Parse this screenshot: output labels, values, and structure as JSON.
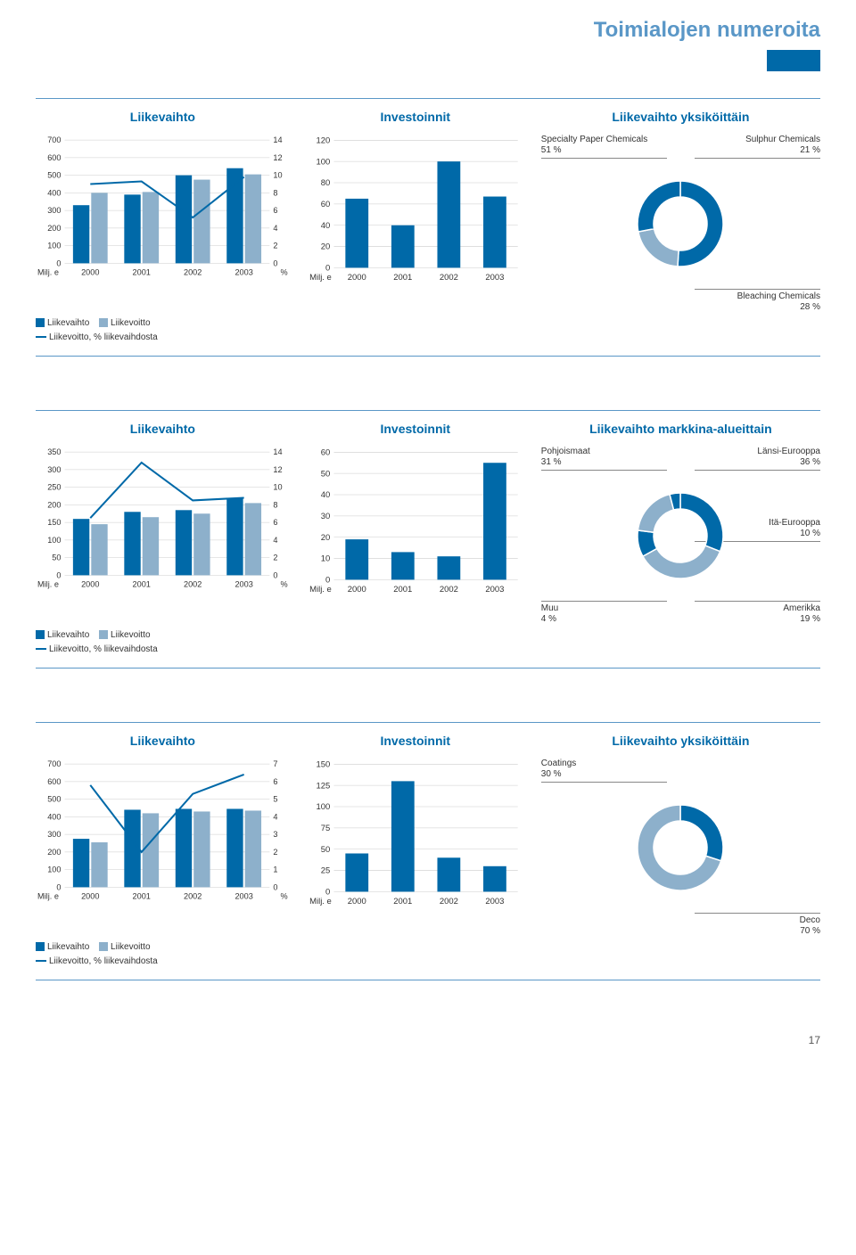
{
  "page": {
    "title": "Toimialojen numeroita",
    "number": "17"
  },
  "colors": {
    "primary": "#0069a8",
    "secondary": "#8db0cb",
    "accent": "#5a97c7",
    "grid": "#cccccc",
    "text": "#333333"
  },
  "sections": [
    {
      "combo": {
        "title": "Liikevaihto",
        "years": [
          "2000",
          "2001",
          "2002",
          "2003"
        ],
        "left_axis": {
          "min": 0,
          "max": 700,
          "step": 100,
          "label": "Milj. e"
        },
        "right_axis": {
          "min": 0,
          "max": 14,
          "step": 2,
          "label": "%"
        },
        "liikevaihto": [
          330,
          390,
          500,
          540
        ],
        "liikevoitto": [
          400,
          405,
          475,
          505
        ],
        "pct_line": [
          9.0,
          9.3,
          5.2,
          9.8
        ],
        "legend": {
          "a": "Liikevaihto",
          "b": "Liikevoitto",
          "c": "Liikevoitto, % liikevaihdosta"
        }
      },
      "bars": {
        "title": "Investoinnit",
        "years": [
          "2000",
          "2001",
          "2002",
          "2003"
        ],
        "axis": {
          "min": 0,
          "max": 120,
          "step": 20,
          "label": "Milj. e"
        },
        "values": [
          65,
          40,
          100,
          67
        ]
      },
      "donut": {
        "title": "Liikevaihto yksiköittäin",
        "slices": [
          {
            "label": "Specialty Paper Chemicals",
            "value": 51,
            "pos": "tl"
          },
          {
            "label": "Sulphur Chemicals",
            "value": 21,
            "pos": "tr"
          },
          {
            "label": "Bleaching Chemicals",
            "value": 28,
            "pos": "br"
          }
        ]
      }
    },
    {
      "combo": {
        "title": "Liikevaihto",
        "years": [
          "2000",
          "2001",
          "2002",
          "2003"
        ],
        "left_axis": {
          "min": 0,
          "max": 350,
          "step": 50,
          "label": "Milj. e"
        },
        "right_axis": {
          "min": 0,
          "max": 14,
          "step": 2,
          "label": "%"
        },
        "liikevaihto": [
          160,
          180,
          185,
          220
        ],
        "liikevoitto": [
          145,
          165,
          175,
          205
        ],
        "pct_line": [
          6.5,
          12.8,
          8.5,
          8.8
        ],
        "legend": {
          "a": "Liikevaihto",
          "b": "Liikevoitto",
          "c": "Liikevoitto, % liikevaihdosta"
        }
      },
      "bars": {
        "title": "Investoinnit",
        "years": [
          "2000",
          "2001",
          "2002",
          "2003"
        ],
        "axis": {
          "min": 0,
          "max": 60,
          "step": 10,
          "label": "Milj. e"
        },
        "values": [
          19,
          13,
          11,
          55
        ]
      },
      "donut": {
        "title": "Liikevaihto markkina-alueittain",
        "slices": [
          {
            "label": "Pohjoismaat",
            "value": 31,
            "pos": "tl"
          },
          {
            "label": "Länsi-Eurooppa",
            "value": 36,
            "pos": "tr"
          },
          {
            "label": "Itä-Eurooppa",
            "value": 10,
            "pos": "mr"
          },
          {
            "label": "Amerikka",
            "value": 19,
            "pos": "br"
          },
          {
            "label": "Muu",
            "value": 4,
            "pos": "bl"
          }
        ]
      }
    },
    {
      "combo": {
        "title": "Liikevaihto",
        "years": [
          "2000",
          "2001",
          "2002",
          "2003"
        ],
        "left_axis": {
          "min": 0,
          "max": 700,
          "step": 100,
          "label": "Milj. e"
        },
        "right_axis": {
          "min": 0,
          "max": 7,
          "step": 1,
          "label": "%"
        },
        "liikevaihto": [
          275,
          440,
          445,
          445
        ],
        "liikevoitto": [
          255,
          420,
          430,
          435
        ],
        "pct_line": [
          5.8,
          2.0,
          5.3,
          6.4
        ],
        "legend": {
          "a": "Liikevaihto",
          "b": "Liikevoitto",
          "c": "Liikevoitto, % liikevaihdosta"
        }
      },
      "bars": {
        "title": "Investoinnit",
        "years": [
          "2000",
          "2001",
          "2002",
          "2003"
        ],
        "axis": {
          "min": 0,
          "max": 150,
          "step": 25,
          "label": "Milj. e"
        },
        "values": [
          45,
          130,
          40,
          30
        ]
      },
      "donut": {
        "title": "Liikevaihto yksiköittäin",
        "slices": [
          {
            "label": "Coatings",
            "value": 30,
            "pos": "tl"
          },
          {
            "label": "Deco",
            "value": 70,
            "pos": "br"
          }
        ]
      }
    }
  ]
}
